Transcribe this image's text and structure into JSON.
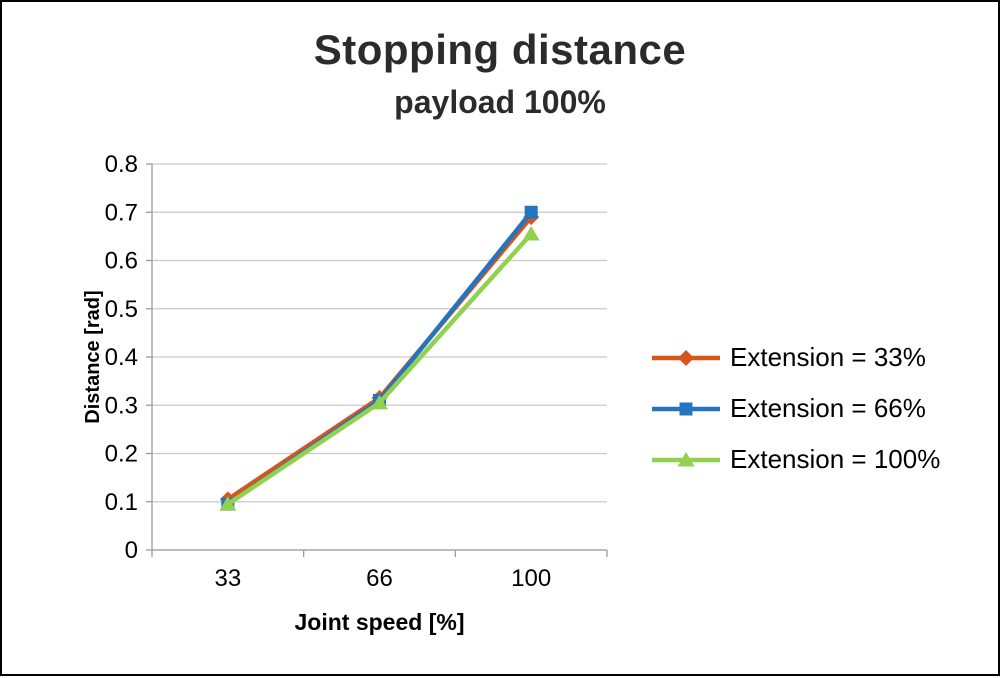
{
  "chart_data": {
    "type": "line",
    "title": "Stopping distance",
    "subtitle": "payload 100%",
    "xlabel": "Joint speed [%]",
    "ylabel": "Distance [rad]",
    "categories": [
      33,
      66,
      100
    ],
    "x_tick_labels": [
      "33",
      "66",
      "100"
    ],
    "y_tick_labels": [
      "0",
      "0.1",
      "0.2",
      "0.3",
      "0.4",
      "0.5",
      "0.6",
      "0.7",
      "0.8"
    ],
    "ylim": [
      0,
      0.8
    ],
    "grid": "horizontal",
    "legend_position": "right",
    "series": [
      {
        "name": "Extension = 33%",
        "color": "#D6551D",
        "marker": "diamond",
        "values": [
          0.105,
          0.315,
          0.69
        ]
      },
      {
        "name": "Extension = 66%",
        "color": "#2574BE",
        "marker": "square",
        "values": [
          0.095,
          0.31,
          0.7
        ]
      },
      {
        "name": "Extension = 100%",
        "color": "#92D050",
        "marker": "triangle",
        "values": [
          0.095,
          0.305,
          0.655
        ]
      }
    ],
    "colors": {
      "grid": "#C9C9C9",
      "axis": "#9B9B9B",
      "text": "#000000",
      "title": "#2b2b2b",
      "border": "#000000"
    }
  }
}
